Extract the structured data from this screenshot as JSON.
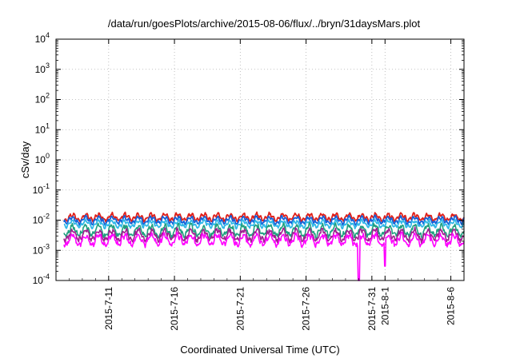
{
  "chart_data": {
    "type": "line",
    "title": "/data/run/goesPlots/archive/2015-08-06/flux/../bryn/31daysMars.plot",
    "xlabel": "Coordinated Universal Time (UTC)",
    "ylabel": "cSv/day",
    "yscale": "log",
    "ylim": [
      0.0001,
      10000
    ],
    "y_tick_exponents": [
      "-4",
      "-3",
      "-2",
      "-1",
      "0",
      "1",
      "2",
      "3",
      "4"
    ],
    "y_tick_base": "10",
    "xlim": [
      "2015-07-07",
      "2015-08-07"
    ],
    "x_tick_labels": [
      "2015-7-11",
      "2015-7-16",
      "2015-7-21",
      "2015-7-26",
      "2015-7-31",
      "2015-8-1",
      "2015-8-6"
    ],
    "x_tick_dates": [
      "2015-07-11",
      "2015-07-16",
      "2015-07-21",
      "2015-07-26",
      "2015-07-31",
      "2015-08-01",
      "2015-08-06"
    ],
    "grid": true,
    "series_colors": [
      "#e0201a",
      "#1560d8",
      "#30b8e8",
      "#20a080",
      "#a02090",
      "#ff00ff"
    ],
    "series_levels": [
      0.0125,
      0.01,
      0.0075,
      0.0045,
      0.0032,
      0.0022
    ],
    "dips": [
      {
        "date": "2015-07-30",
        "value": 0.0001
      },
      {
        "date": "2015-08-01",
        "value": 0.0003
      }
    ]
  }
}
